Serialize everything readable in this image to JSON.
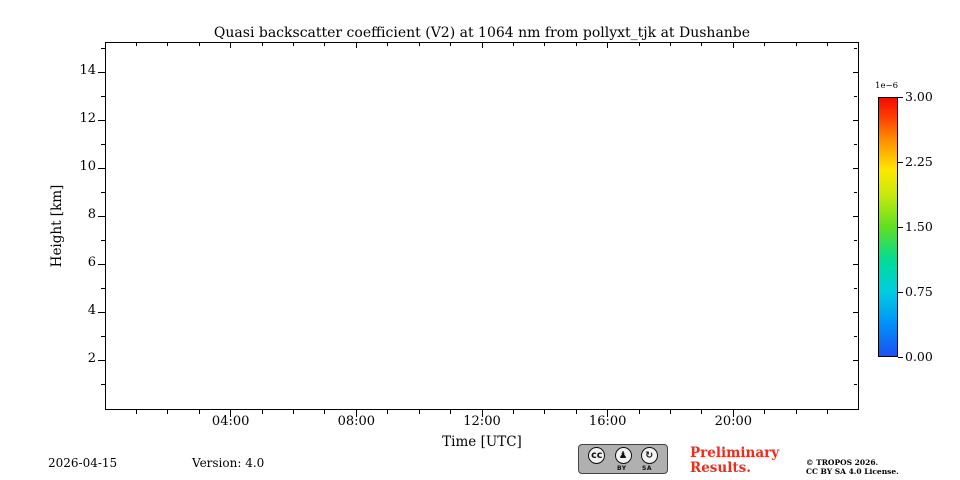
{
  "chart_data": {
    "type": "heatmap",
    "title": "Quasi backscatter coefficient (V2) at 1064 nm from pollyxt_tjk at Dushanbe",
    "xlabel": "Time [UTC]",
    "ylabel": "Height [km]",
    "x_ticks": [
      "04:00",
      "08:00",
      "12:00",
      "16:00",
      "20:00"
    ],
    "x_tick_hours": [
      4,
      8,
      12,
      16,
      20
    ],
    "xlim_hours": [
      0,
      24
    ],
    "x_minor_step_hours": 1,
    "y_tick_km": [
      2,
      4,
      6,
      8,
      10,
      12,
      14
    ],
    "ylim_km": [
      0,
      15.25
    ],
    "y_minor_step_km": 2,
    "values": [],
    "colorbar": {
      "scale_label": "1e−6",
      "ticks": [
        "0.00",
        "0.75",
        "1.50",
        "2.25",
        "3.00"
      ],
      "value_range": [
        0,
        3e-06
      ],
      "colormap": "jet",
      "gradient_stops": [
        {
          "pos": 0.0,
          "color": "#1e50f0"
        },
        {
          "pos": 0.12,
          "color": "#008ffa"
        },
        {
          "pos": 0.25,
          "color": "#00cde0"
        },
        {
          "pos": 0.37,
          "color": "#00dc9a"
        },
        {
          "pos": 0.5,
          "color": "#5fdf22"
        },
        {
          "pos": 0.62,
          "color": "#c3e90e"
        },
        {
          "pos": 0.72,
          "color": "#fde800"
        },
        {
          "pos": 0.84,
          "color": "#ff8d00"
        },
        {
          "pos": 0.93,
          "color": "#ff3b00"
        },
        {
          "pos": 1.0,
          "color": "#f30b00"
        }
      ]
    }
  },
  "footer": {
    "date": "2026-04-15",
    "version_label": "Version: 4.0",
    "preliminary_line1": "Preliminary",
    "preliminary_line2": "Results.",
    "copyright_line1": "© TROPOS 2026.",
    "copyright_line2": "CC BY SA 4.0 License.",
    "license_badge": {
      "cc_glyph": "cc",
      "by_glyph": "♟",
      "sa_glyph": "↻",
      "by_label": "BY",
      "sa_label": "SA"
    }
  },
  "colors": {
    "preliminary_red": "#ee2c1c",
    "axis_black": "#000000"
  }
}
